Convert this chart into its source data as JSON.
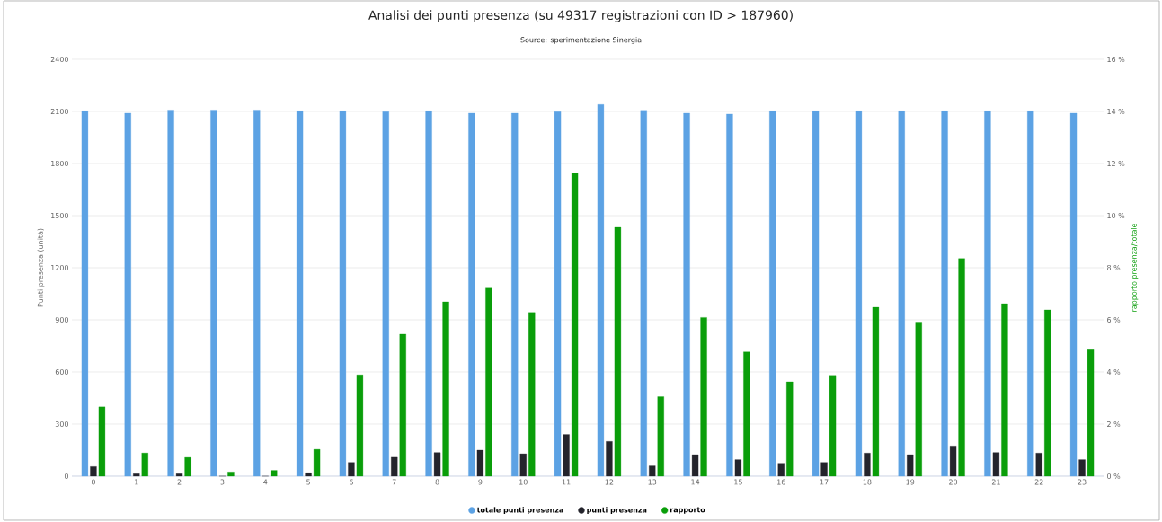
{
  "chart_data": {
    "type": "bar",
    "title": "Analisi dei punti presenza (su 49317 registrazioni con ID > 187960)",
    "subtitle": "Source: sperimentazione Sinergia",
    "ylabel": "Punti presenza (unità)",
    "y2label": "rapporto presenza/totale",
    "categories": [
      "0",
      "1",
      "2",
      "3",
      "4",
      "5",
      "6",
      "7",
      "8",
      "9",
      "10",
      "11",
      "12",
      "13",
      "14",
      "15",
      "16",
      "17",
      "18",
      "19",
      "20",
      "21",
      "22",
      "23"
    ],
    "series": [
      {
        "name": "totale punti presenza",
        "color": "#5ca2e4",
        "values": [
          2103,
          2090,
          2108,
          2108,
          2108,
          2103,
          2103,
          2098,
          2103,
          2090,
          2090,
          2098,
          2140,
          2106,
          2090,
          2085,
          2103,
          2103,
          2103,
          2103,
          2103,
          2103,
          2103,
          2090
        ]
      },
      {
        "name": "punti presenza",
        "color": "#24242c",
        "values": [
          55,
          14,
          14,
          0,
          0,
          19,
          79,
          109,
          136,
          150,
          129,
          240,
          200,
          59,
          124,
          95,
          74,
          79,
          133,
          124,
          174,
          136,
          133,
          95
        ]
      },
      {
        "name": "rapporto",
        "color": "#0a9e0a",
        "axis": "y2",
        "values": [
          2.66,
          0.89,
          0.72,
          0.16,
          0.22,
          1.03,
          3.89,
          5.45,
          6.69,
          7.25,
          6.28,
          11.63,
          9.55,
          3.05,
          6.09,
          4.77,
          3.62,
          3.87,
          6.48,
          5.91,
          8.35,
          6.62,
          6.38,
          4.85
        ]
      }
    ],
    "ylim": [
      0,
      2400
    ],
    "yticks": [
      0,
      300,
      600,
      900,
      1200,
      1500,
      1800,
      2100,
      2400
    ],
    "y2lim": [
      0,
      16
    ],
    "y2ticks": [
      {
        "value": 0,
        "label": "0 %"
      },
      {
        "value": 2,
        "label": "2 %"
      },
      {
        "value": 4,
        "label": "4 %"
      },
      {
        "value": 6,
        "label": "6 %"
      },
      {
        "value": 8,
        "label": "8 %"
      },
      {
        "value": 10,
        "label": "10 %"
      },
      {
        "value": 12,
        "label": "12 %"
      },
      {
        "value": 14,
        "label": "14 %"
      },
      {
        "value": 16,
        "label": "16 %"
      }
    ],
    "grid": true,
    "legend": "bottom"
  }
}
